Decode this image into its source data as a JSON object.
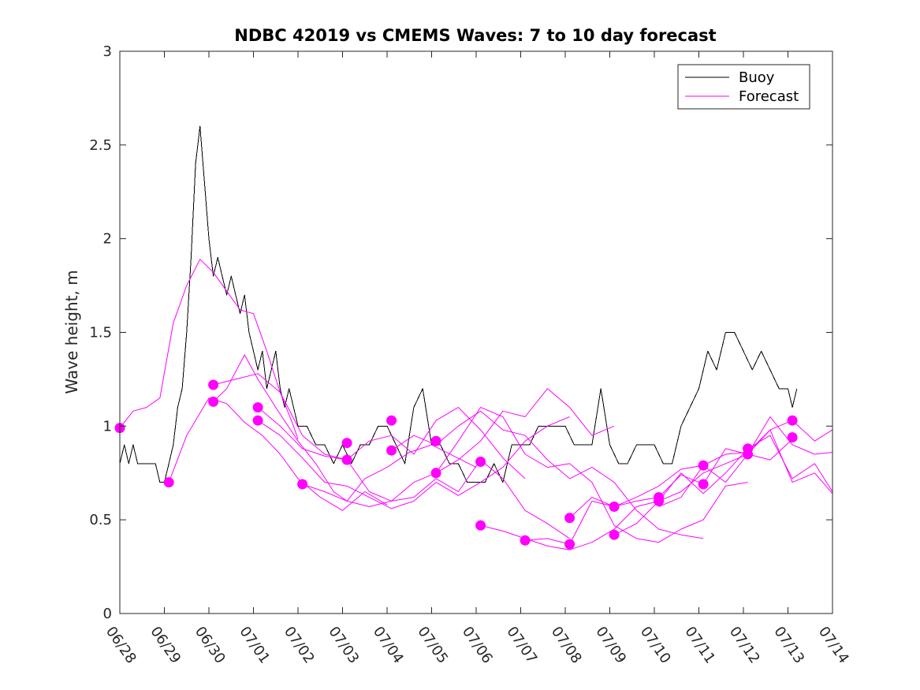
{
  "chart_data": {
    "type": "line",
    "title": "NDBC 42019 vs CMEMS Waves: 7 to 10 day forecast",
    "xlabel": "",
    "ylabel": "Wave height, m",
    "x_start": "06/28",
    "x_ticks": [
      "06/28",
      "06/29",
      "06/30",
      "07/01",
      "07/02",
      "07/03",
      "07/04",
      "07/05",
      "07/06",
      "07/07",
      "07/08",
      "07/09",
      "07/10",
      "07/11",
      "07/12",
      "07/13",
      "07/14"
    ],
    "xlim": [
      0,
      16
    ],
    "ylim": [
      0,
      3
    ],
    "y_ticks": [
      0,
      0.5,
      1,
      1.5,
      2,
      2.5,
      3
    ],
    "y_tick_labels": [
      "0",
      "0.5",
      "1",
      "1.5",
      "2",
      "2.5",
      "3"
    ],
    "grid": false,
    "legend_position": "top-right",
    "colors": {
      "buoy": "#000000",
      "forecast": "#ff00ff"
    },
    "series": [
      {
        "name": "Buoy",
        "x": [
          0,
          0.1,
          0.2,
          0.3,
          0.4,
          0.5,
          0.6,
          0.7,
          0.8,
          0.9,
          1.0,
          1.1,
          1.2,
          1.3,
          1.4,
          1.5,
          1.6,
          1.7,
          1.8,
          1.9,
          2.0,
          2.1,
          2.2,
          2.3,
          2.4,
          2.5,
          2.6,
          2.7,
          2.8,
          2.9,
          3.0,
          3.1,
          3.2,
          3.3,
          3.4,
          3.5,
          3.6,
          3.7,
          3.8,
          3.9,
          4.0,
          4.2,
          4.4,
          4.6,
          4.8,
          5.0,
          5.2,
          5.4,
          5.6,
          5.8,
          6.0,
          6.2,
          6.4,
          6.6,
          6.8,
          7.0,
          7.2,
          7.4,
          7.6,
          7.8,
          8.0,
          8.2,
          8.4,
          8.6,
          8.8,
          9.0,
          9.2,
          9.4,
          9.6,
          9.8,
          10.0,
          10.2,
          10.4,
          10.6,
          10.8,
          11.0,
          11.2,
          11.4,
          11.6,
          11.8,
          12.0,
          12.2,
          12.4,
          12.6,
          12.8,
          13.0,
          13.2,
          13.4,
          13.6,
          13.8,
          14.0,
          14.2,
          14.4,
          14.6,
          14.8,
          15.0,
          15.1,
          15.2
        ],
        "values": [
          0.8,
          0.9,
          0.8,
          0.9,
          0.8,
          0.8,
          0.8,
          0.8,
          0.8,
          0.7,
          0.7,
          0.8,
          0.9,
          1.1,
          1.2,
          1.5,
          1.9,
          2.4,
          2.6,
          2.3,
          2.0,
          1.8,
          1.9,
          1.8,
          1.7,
          1.8,
          1.7,
          1.6,
          1.7,
          1.5,
          1.4,
          1.3,
          1.4,
          1.2,
          1.3,
          1.4,
          1.2,
          1.1,
          1.2,
          1.1,
          1.0,
          1.0,
          0.9,
          0.9,
          0.8,
          0.9,
          0.8,
          0.9,
          0.9,
          1.0,
          1.0,
          0.9,
          0.8,
          1.1,
          1.2,
          0.9,
          0.9,
          0.8,
          0.8,
          0.7,
          0.7,
          0.7,
          0.8,
          0.7,
          0.9,
          0.9,
          0.9,
          1.0,
          1.0,
          1.0,
          1.0,
          0.9,
          0.9,
          0.9,
          1.2,
          0.9,
          0.8,
          0.8,
          0.9,
          0.9,
          0.9,
          0.8,
          0.8,
          1.0,
          1.1,
          1.2,
          1.4,
          1.3,
          1.5,
          1.5,
          1.4,
          1.3,
          1.4,
          1.3,
          1.2,
          1.2,
          1.1,
          1.2
        ]
      },
      {
        "name": "Forecast",
        "x": [
          0,
          0.3,
          0.6,
          0.9,
          1.2,
          1.5,
          1.8,
          2.1,
          2.4,
          2.7,
          3.0,
          3.3,
          3.6,
          3.9,
          4.0
        ],
        "values": [
          0.99,
          1.08,
          1.1,
          1.15,
          1.55,
          1.75,
          1.89,
          1.82,
          1.72,
          1.62,
          1.6,
          1.4,
          1.18,
          1.0,
          0.93
        ]
      },
      {
        "name": "",
        "x": [
          1.1,
          1.5,
          2.0,
          2.4,
          2.8,
          3.2,
          3.6,
          4.0,
          4.5,
          5.0,
          5.5,
          6.0
        ],
        "values": [
          0.7,
          0.95,
          1.15,
          1.12,
          1.02,
          0.95,
          0.85,
          0.72,
          0.62,
          0.55,
          0.65,
          0.58
        ]
      },
      {
        "name": "",
        "x": [
          2.1,
          2.4,
          2.8,
          3.1,
          3.5,
          4.0,
          4.4,
          4.8,
          5.1,
          5.5,
          6.0,
          6.5,
          7.0,
          7.5,
          8.0
        ],
        "values": [
          1.13,
          1.2,
          1.38,
          1.25,
          1.1,
          0.92,
          0.8,
          0.65,
          0.6,
          0.72,
          0.78,
          0.86,
          0.9,
          0.84,
          0.78
        ]
      },
      {
        "name": "",
        "x": [
          2.1,
          2.6,
          3.1,
          3.6,
          4.1,
          4.6,
          5.1,
          5.6,
          6.1,
          6.6,
          7.1,
          7.6,
          8.1,
          8.6,
          9.1
        ],
        "values": [
          1.22,
          1.25,
          1.28,
          1.18,
          0.95,
          0.85,
          0.82,
          0.92,
          0.95,
          0.85,
          1.03,
          1.1,
          0.98,
          0.83,
          0.72
        ]
      },
      {
        "name": "",
        "x": [
          3.1,
          3.6,
          4.1,
          4.6,
          5.1,
          5.6,
          6.1,
          6.6,
          7.1,
          7.6,
          8.1,
          8.6,
          9.1,
          9.6,
          10.1
        ],
        "values": [
          1.1,
          1.0,
          0.88,
          0.84,
          0.82,
          0.65,
          0.6,
          0.62,
          0.72,
          0.65,
          0.82,
          0.72,
          0.55,
          0.48,
          0.4
        ]
      },
      {
        "name": "",
        "x": [
          3.1,
          3.6,
          4.1,
          4.6,
          5.1,
          5.6,
          6.1,
          6.6,
          7.1,
          7.6,
          8.1,
          8.6,
          9.1,
          9.6,
          10.1
        ],
        "values": [
          1.03,
          0.95,
          0.83,
          0.7,
          0.68,
          0.62,
          0.56,
          0.6,
          0.7,
          0.63,
          0.7,
          0.78,
          0.92,
          1.0,
          1.05
        ]
      },
      {
        "name": "",
        "x": [
          4.1,
          4.6,
          5.1,
          5.6,
          6.1,
          6.6,
          7.1,
          7.6,
          8.1,
          8.6,
          9.1,
          9.6,
          10.1,
          10.6,
          11.1
        ],
        "values": [
          0.69,
          0.65,
          0.6,
          0.57,
          0.6,
          0.7,
          0.75,
          0.82,
          0.92,
          1.08,
          1.05,
          1.2,
          1.1,
          0.95,
          1.0
        ]
      },
      {
        "name": "",
        "x": [
          6.1,
          6.6,
          7.1,
          7.6,
          8.1,
          8.6,
          9.1,
          9.6,
          10.1,
          10.6,
          11.1,
          11.6,
          12.1,
          12.6,
          13.1
        ],
        "values": [
          0.87,
          0.95,
          0.9,
          1.0,
          1.08,
          0.98,
          0.95,
          0.82,
          0.72,
          0.78,
          0.7,
          0.55,
          0.45,
          0.42,
          0.4
        ]
      },
      {
        "name": "",
        "x": [
          7.1,
          7.6,
          8.1,
          8.6,
          9.1,
          9.6,
          10.1,
          10.6,
          11.1,
          11.6,
          12.1,
          12.6,
          13.1,
          13.6,
          14.1
        ],
        "values": [
          0.75,
          0.92,
          1.1,
          1.05,
          0.85,
          0.78,
          0.8,
          0.7,
          0.47,
          0.4,
          0.38,
          0.45,
          0.5,
          0.68,
          0.7
        ]
      },
      {
        "name": "",
        "x": [
          8.1,
          8.6,
          9.1,
          9.6,
          10.1,
          10.6,
          11.1,
          11.6,
          12.1,
          12.6,
          13.1,
          13.6,
          14.1,
          14.6,
          15.1
        ],
        "values": [
          0.47,
          0.44,
          0.4,
          0.36,
          0.34,
          0.38,
          0.45,
          0.57,
          0.6,
          0.65,
          0.75,
          0.8,
          0.85,
          0.82,
          0.93
        ]
      },
      {
        "name": "",
        "x": [
          9.1,
          9.6,
          10.1,
          10.6,
          11.1,
          11.6,
          12.1,
          12.6,
          13.1,
          13.6,
          14.1,
          14.6,
          15.1,
          15.6,
          16.0
        ],
        "values": [
          0.39,
          0.4,
          0.37,
          0.6,
          0.57,
          0.62,
          0.68,
          0.77,
          0.79,
          0.7,
          0.85,
          0.98,
          1.03,
          0.92,
          0.98
        ]
      },
      {
        "name": "",
        "x": [
          10.1,
          10.6,
          11.1,
          11.6,
          12.1,
          12.6,
          13.1,
          13.6,
          14.1,
          14.6,
          15.1,
          15.6,
          16.0
        ],
        "values": [
          0.51,
          0.62,
          0.57,
          0.6,
          0.62,
          0.74,
          0.69,
          0.88,
          0.85,
          1.05,
          0.9,
          0.85,
          0.86
        ]
      },
      {
        "name": "",
        "x": [
          11.1,
          11.6,
          12.1,
          12.6,
          13.1,
          13.6,
          14.1,
          14.6,
          15.1,
          15.6,
          16.0
        ],
        "values": [
          0.42,
          0.48,
          0.6,
          0.75,
          0.64,
          0.75,
          0.88,
          0.95,
          0.72,
          0.8,
          0.65
        ]
      },
      {
        "name": "",
        "x": [
          12.1,
          12.6,
          13.1,
          13.6,
          14.1,
          14.6,
          15.1,
          15.6,
          16.0
        ],
        "values": [
          0.57,
          0.62,
          0.79,
          0.85,
          0.86,
          0.98,
          0.7,
          0.75,
          0.64
        ]
      }
    ],
    "markers": {
      "x": [
        0,
        1.1,
        2.1,
        2.1,
        3.1,
        3.1,
        4.1,
        5.1,
        5.1,
        6.1,
        6.1,
        7.1,
        7.1,
        8.1,
        8.1,
        9.1,
        10.1,
        10.1,
        11.1,
        11.1,
        12.1,
        12.1,
        13.1,
        13.1,
        14.1,
        14.1,
        15.1,
        15.1
      ],
      "values": [
        0.99,
        0.7,
        1.22,
        1.13,
        1.1,
        1.03,
        0.69,
        0.91,
        0.82,
        1.03,
        0.87,
        0.92,
        0.75,
        0.81,
        0.47,
        0.39,
        0.51,
        0.37,
        0.57,
        0.42,
        0.62,
        0.6,
        0.79,
        0.69,
        0.88,
        0.85,
        1.03,
        0.94
      ]
    }
  }
}
